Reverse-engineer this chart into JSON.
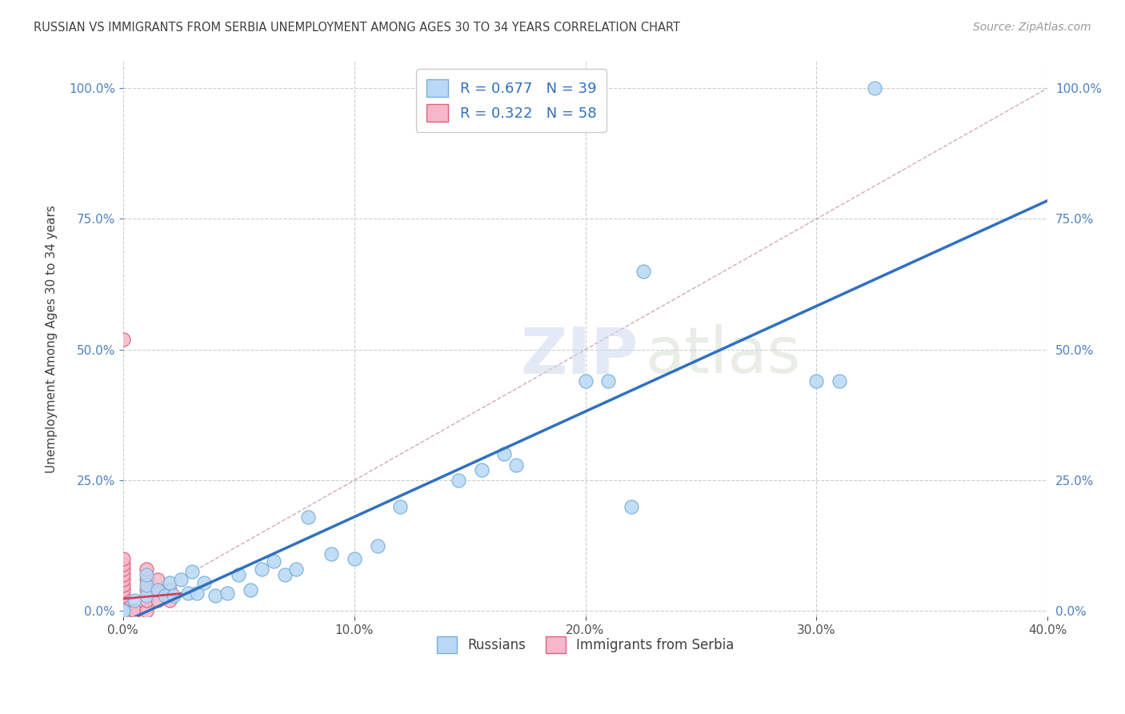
{
  "title": "RUSSIAN VS IMMIGRANTS FROM SERBIA UNEMPLOYMENT AMONG AGES 30 TO 34 YEARS CORRELATION CHART",
  "source": "Source: ZipAtlas.com",
  "ylabel": "Unemployment Among Ages 30 to 34 years",
  "xlim": [
    0.0,
    0.4
  ],
  "ylim": [
    -0.01,
    1.05
  ],
  "xtick_vals": [
    0.0,
    0.1,
    0.2,
    0.3,
    0.4
  ],
  "ytick_vals": [
    0.0,
    0.25,
    0.5,
    0.75,
    1.0
  ],
  "russian_color": "#b8d8f5",
  "russian_edge_color": "#7ab0d8",
  "serbia_color": "#f5b8c8",
  "serbia_edge_color": "#e06080",
  "trend_russian_color": "#3070c0",
  "trend_serbia_color": "#d04060",
  "diagonal_color": "#d0a0b0",
  "R_russian": 0.677,
  "N_russian": 39,
  "R_serbia": 0.322,
  "N_serbia": 58,
  "watermark_zip": "ZIP",
  "watermark_atlas": "atlas",
  "legend_label_russian": "Russians",
  "legend_label_serbia": "Immigrants from Serbia",
  "russian_x": [
    0.0,
    0.0,
    0.005,
    0.01,
    0.01,
    0.01,
    0.015,
    0.018,
    0.02,
    0.022,
    0.025,
    0.028,
    0.03,
    0.032,
    0.035,
    0.04,
    0.045,
    0.05,
    0.055,
    0.06,
    0.065,
    0.07,
    0.075,
    0.08,
    0.09,
    0.1,
    0.11,
    0.12,
    0.145,
    0.155,
    0.165,
    0.17,
    0.2,
    0.21,
    0.22,
    0.225,
    0.3,
    0.31,
    0.325
  ],
  "russian_y": [
    0.0,
    0.0,
    0.02,
    0.03,
    0.05,
    0.07,
    0.04,
    0.03,
    0.055,
    0.03,
    0.06,
    0.035,
    0.075,
    0.035,
    0.055,
    0.03,
    0.035,
    0.07,
    0.04,
    0.08,
    0.095,
    0.07,
    0.08,
    0.18,
    0.11,
    0.1,
    0.125,
    0.2,
    0.25,
    0.27,
    0.3,
    0.28,
    0.44,
    0.44,
    0.2,
    0.65,
    0.44,
    0.44,
    1.0
  ],
  "serbia_x": [
    0.0,
    0.0,
    0.0,
    0.0,
    0.0,
    0.0,
    0.0,
    0.0,
    0.0,
    0.0,
    0.0,
    0.0,
    0.0,
    0.0,
    0.0,
    0.0,
    0.0,
    0.0,
    0.0,
    0.0,
    0.0,
    0.0,
    0.0,
    0.0,
    0.0,
    0.0,
    0.0,
    0.0,
    0.0,
    0.0,
    0.0,
    0.0,
    0.0,
    0.0,
    0.0,
    0.0,
    0.0,
    0.0,
    0.0,
    0.0,
    0.005,
    0.005,
    0.005,
    0.005,
    0.005,
    0.005,
    0.005,
    0.005,
    0.01,
    0.01,
    0.01,
    0.01,
    0.01,
    0.015,
    0.015,
    0.015,
    0.02,
    0.02
  ],
  "serbia_y": [
    0.0,
    0.0,
    0.0,
    0.0,
    0.0,
    0.0,
    0.0,
    0.0,
    0.0,
    0.0,
    0.0,
    0.0,
    0.0,
    0.0,
    0.0,
    0.0,
    0.0,
    0.0,
    0.0,
    0.0,
    0.02,
    0.03,
    0.04,
    0.05,
    0.06,
    0.07,
    0.08,
    0.09,
    0.1,
    0.52,
    0.0,
    0.0,
    0.0,
    0.0,
    0.0,
    0.0,
    0.0,
    0.0,
    0.0,
    0.0,
    0.0,
    0.0,
    0.0,
    0.0,
    0.0,
    0.0,
    0.0,
    0.0,
    0.0,
    0.02,
    0.04,
    0.06,
    0.08,
    0.02,
    0.04,
    0.06,
    0.02,
    0.04
  ]
}
